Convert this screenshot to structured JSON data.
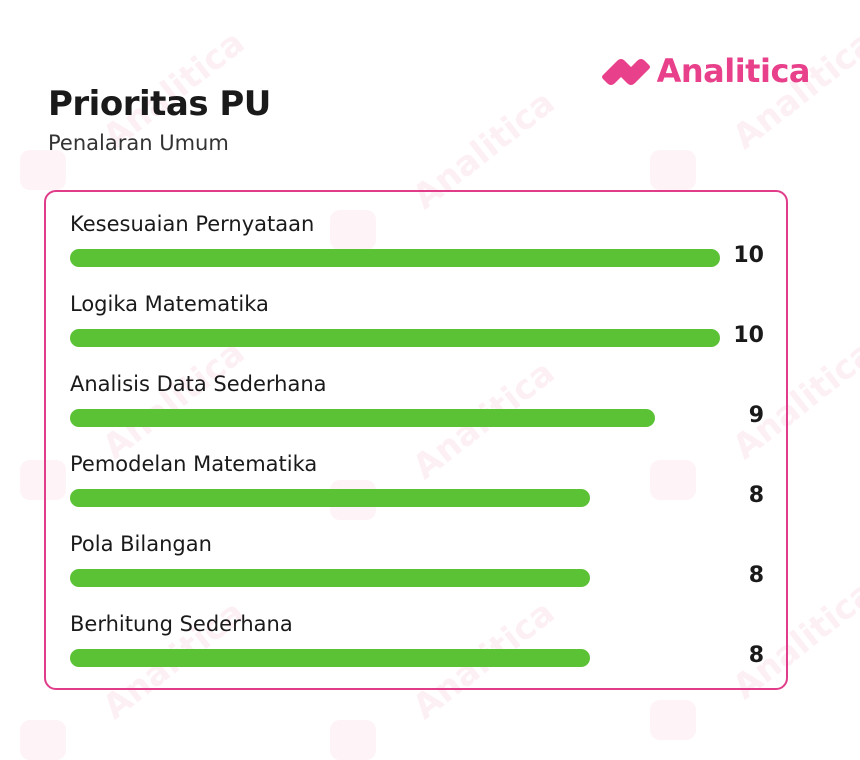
{
  "brand": {
    "name": "Analitica",
    "color": "#e8408a"
  },
  "header": {
    "title": "Prioritas PU",
    "subtitle": "Penalaran Umum"
  },
  "watermark_text": "Analitica",
  "chart_data": {
    "type": "bar",
    "orientation": "horizontal",
    "categories": [
      "Kesesuaian Pernyataan",
      "Logika Matematika",
      "Analisis Data Sederhana",
      "Pemodelan Matematika",
      "Pola Bilangan",
      "Berhitung Sederhana"
    ],
    "values": [
      10,
      10,
      9,
      8,
      8,
      8
    ],
    "xlim": [
      0,
      10
    ],
    "bar_color": "#5bc236",
    "border_color": "#e03c8a",
    "grid": false,
    "legend": "none"
  }
}
